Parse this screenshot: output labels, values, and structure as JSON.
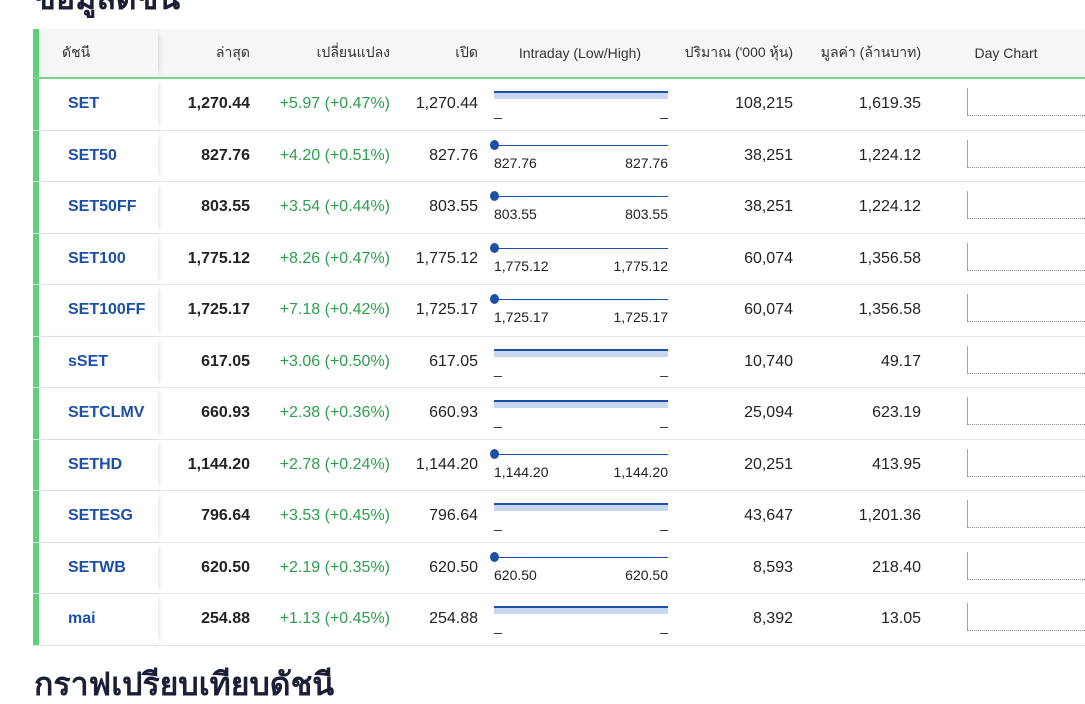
{
  "headings": {
    "top": "ข้อมูลดัชนี",
    "bottom": "กราฟเปรียบเทียบดัชนี"
  },
  "table": {
    "headers": {
      "index": "ดัชนี",
      "last": "ล่าสุด",
      "change": "เปลี่ยนแปลง",
      "open": "เปิด",
      "intraday": "Intraday (Low/High)",
      "volume": "ปริมาณ ('000 หุ้น)",
      "value": "มูลค่า (ล้านบาท)",
      "daychart": "Day Chart"
    },
    "rows": [
      {
        "name": "SET",
        "last": "1,270.44",
        "change": "+5.97 (+0.47%)",
        "open": "1,270.44",
        "bar": "full",
        "low": "_",
        "high": "_",
        "volume": "108,215",
        "value": "1,619.35"
      },
      {
        "name": "SET50",
        "last": "827.76",
        "change": "+4.20 (+0.51%)",
        "open": "827.76",
        "bar": "dot",
        "low": "827.76",
        "high": "827.76",
        "volume": "38,251",
        "value": "1,224.12"
      },
      {
        "name": "SET50FF",
        "last": "803.55",
        "change": "+3.54 (+0.44%)",
        "open": "803.55",
        "bar": "dot",
        "low": "803.55",
        "high": "803.55",
        "volume": "38,251",
        "value": "1,224.12"
      },
      {
        "name": "SET100",
        "last": "1,775.12",
        "change": "+8.26 (+0.47%)",
        "open": "1,775.12",
        "bar": "dot",
        "low": "1,775.12",
        "high": "1,775.12",
        "volume": "60,074",
        "value": "1,356.58"
      },
      {
        "name": "SET100FF",
        "last": "1,725.17",
        "change": "+7.18 (+0.42%)",
        "open": "1,725.17",
        "bar": "dot",
        "low": "1,725.17",
        "high": "1,725.17",
        "volume": "60,074",
        "value": "1,356.58"
      },
      {
        "name": "sSET",
        "last": "617.05",
        "change": "+3.06 (+0.50%)",
        "open": "617.05",
        "bar": "full",
        "low": "_",
        "high": "_",
        "volume": "10,740",
        "value": "49.17"
      },
      {
        "name": "SETCLMV",
        "last": "660.93",
        "change": "+2.38 (+0.36%)",
        "open": "660.93",
        "bar": "full",
        "low": "_",
        "high": "_",
        "volume": "25,094",
        "value": "623.19"
      },
      {
        "name": "SETHD",
        "last": "1,144.20",
        "change": "+2.78 (+0.24%)",
        "open": "1,144.20",
        "bar": "dot",
        "low": "1,144.20",
        "high": "1,144.20",
        "volume": "20,251",
        "value": "413.95"
      },
      {
        "name": "SETESG",
        "last": "796.64",
        "change": "+3.53 (+0.45%)",
        "open": "796.64",
        "bar": "full",
        "low": "_",
        "high": "_",
        "volume": "43,647",
        "value": "1,201.36"
      },
      {
        "name": "SETWB",
        "last": "620.50",
        "change": "+2.19 (+0.35%)",
        "open": "620.50",
        "bar": "dot",
        "low": "620.50",
        "high": "620.50",
        "volume": "8,593",
        "value": "218.40"
      },
      {
        "name": "mai",
        "last": "254.88",
        "change": "+1.13 (+0.45%)",
        "open": "254.88",
        "bar": "full",
        "low": "_",
        "high": "_",
        "volume": "8,392",
        "value": "13.05"
      }
    ]
  },
  "colors": {
    "accent_green": "#5fd07a",
    "positive_change": "#2e9e4e",
    "index_link": "#1e4fa8"
  }
}
